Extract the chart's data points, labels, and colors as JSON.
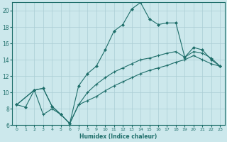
{
  "xlabel": "Humidex (Indice chaleur)",
  "background_color": "#cce8ec",
  "grid_color": "#aacdd4",
  "line_color": "#1e6e6a",
  "xlim": [
    -0.5,
    23.5
  ],
  "ylim": [
    6,
    21
  ],
  "yticks": [
    6,
    8,
    10,
    12,
    14,
    16,
    18,
    20
  ],
  "xticks": [
    0,
    1,
    2,
    3,
    4,
    5,
    6,
    7,
    8,
    9,
    10,
    11,
    12,
    13,
    14,
    15,
    16,
    17,
    18,
    19,
    20,
    21,
    22,
    23
  ],
  "series1_x": [
    0,
    1,
    2,
    3,
    4,
    5,
    6,
    7,
    8,
    9,
    10,
    11,
    12,
    13,
    14,
    15,
    16,
    17,
    18,
    19,
    20,
    21,
    22,
    23
  ],
  "series1_y": [
    8.5,
    8.2,
    10.3,
    10.5,
    8.3,
    7.3,
    6.2,
    10.8,
    12.3,
    13.2,
    15.2,
    17.5,
    18.3,
    20.2,
    21.0,
    19.0,
    18.3,
    18.5,
    18.5,
    14.3,
    15.5,
    15.2,
    14.0,
    13.2
  ],
  "series2_x": [
    0,
    2,
    3,
    4,
    5,
    6,
    7,
    8,
    9,
    10,
    11,
    12,
    13,
    14,
    15,
    16,
    17,
    18,
    19,
    20,
    21,
    22,
    23
  ],
  "series2_y": [
    8.5,
    10.3,
    7.3,
    8.0,
    7.3,
    6.2,
    8.5,
    10.0,
    11.0,
    11.8,
    12.5,
    13.0,
    13.5,
    14.0,
    14.2,
    14.5,
    14.8,
    15.0,
    14.3,
    15.0,
    14.8,
    14.2,
    13.2
  ],
  "series3_x": [
    0,
    2,
    3,
    4,
    5,
    6,
    7,
    8,
    9,
    10,
    11,
    12,
    13,
    14,
    15,
    16,
    17,
    18,
    19,
    20,
    21,
    22,
    23
  ],
  "series3_y": [
    8.5,
    10.3,
    10.5,
    8.3,
    7.3,
    6.2,
    8.5,
    9.0,
    9.5,
    10.2,
    10.8,
    11.3,
    11.8,
    12.3,
    12.7,
    13.0,
    13.3,
    13.7,
    14.0,
    14.5,
    14.0,
    13.5,
    13.2
  ]
}
